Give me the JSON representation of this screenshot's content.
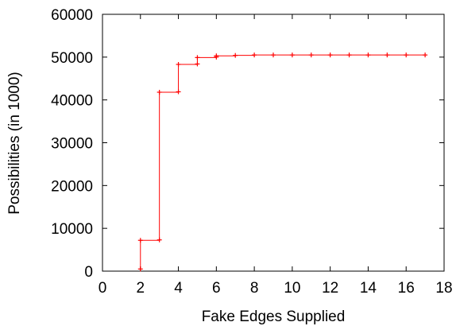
{
  "chart_data": {
    "type": "line",
    "title": "",
    "xlabel": "Fake Edges Supplied",
    "ylabel": "Possibilities (in 1000)",
    "xlim": [
      0,
      18
    ],
    "ylim": [
      0,
      60000
    ],
    "x_ticks": [
      0,
      2,
      4,
      6,
      8,
      10,
      12,
      14,
      16,
      18
    ],
    "y_ticks": [
      0,
      10000,
      20000,
      30000,
      40000,
      50000,
      60000
    ],
    "grid": false,
    "legend": "none",
    "step": "post",
    "color": "#ff0000",
    "x": [
      2,
      2,
      3,
      3,
      4,
      4,
      5,
      5,
      6,
      6,
      7,
      8,
      9,
      10,
      11,
      12,
      13,
      14,
      15,
      16,
      17
    ],
    "y": [
      500,
      7200,
      7300,
      41800,
      41900,
      48300,
      48400,
      49900,
      50000,
      50300,
      50400,
      50500,
      50500,
      50500,
      50500,
      50500,
      50500,
      50500,
      50500,
      50500,
      50500
    ]
  }
}
